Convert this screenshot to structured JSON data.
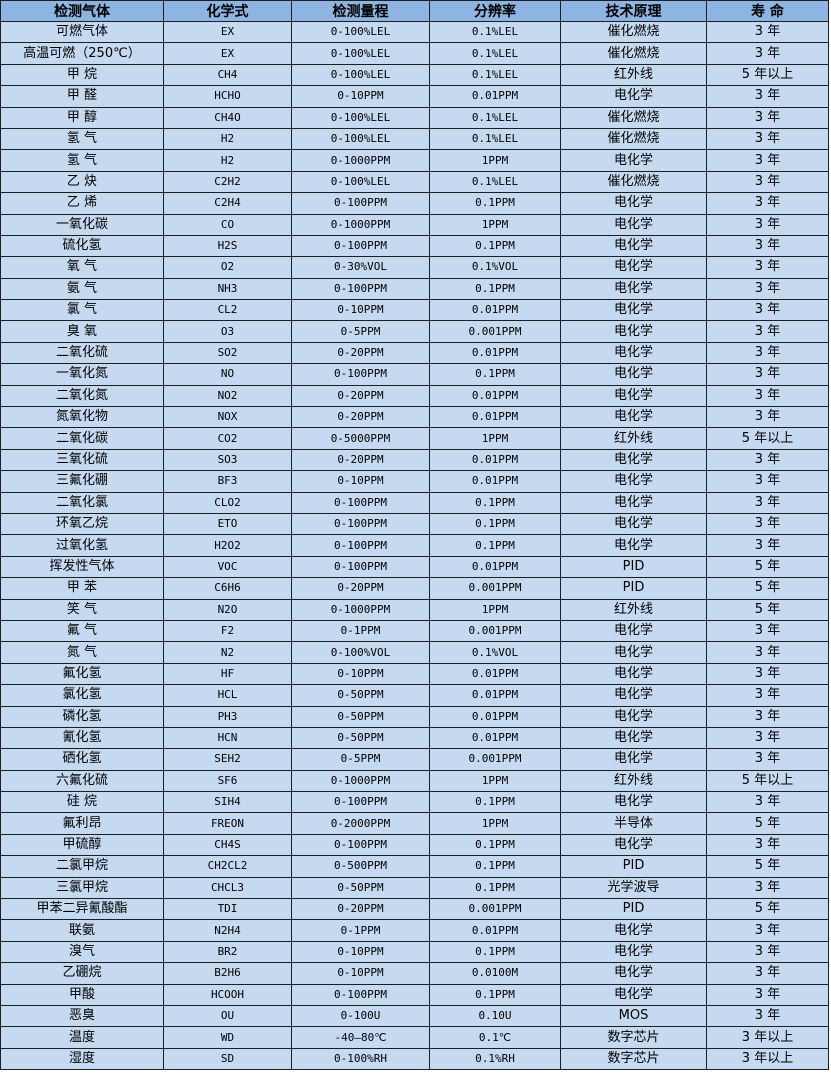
{
  "table": {
    "headers": [
      "检测气体",
      "化学式",
      "检测量程",
      "分辨率",
      "技术原理",
      "寿 命"
    ],
    "rows": [
      [
        "可燃气体",
        "EX",
        "0-100%LEL",
        "0.1%LEL",
        "催化燃烧",
        "3 年"
      ],
      [
        "高温可燃（250℃）",
        "EX",
        "0-100%LEL",
        "0.1%LEL",
        "催化燃烧",
        "3 年"
      ],
      [
        "甲 烷",
        "CH4",
        "0-100%LEL",
        "0.1%LEL",
        "红外线",
        "5 年以上"
      ],
      [
        "甲 醛",
        "HCHO",
        "0-10PPM",
        "0.01PPM",
        "电化学",
        "3 年"
      ],
      [
        "甲 醇",
        "CH4O",
        "0-100%LEL",
        "0.1%LEL",
        "催化燃烧",
        "3 年"
      ],
      [
        "氢 气",
        "H2",
        "0-100%LEL",
        "0.1%LEL",
        "催化燃烧",
        "3 年"
      ],
      [
        "氢 气",
        "H2",
        "0-1000PPM",
        "1PPM",
        "电化学",
        "3 年"
      ],
      [
        "乙 炔",
        "C2H2",
        "0-100%LEL",
        "0.1%LEL",
        "催化燃烧",
        "3 年"
      ],
      [
        "乙 烯",
        "C2H4",
        "0-100PPM",
        "0.1PPM",
        "电化学",
        "3 年"
      ],
      [
        "一氧化碳",
        "CO",
        "0-1000PPM",
        "1PPM",
        "电化学",
        "3 年"
      ],
      [
        "硫化氢",
        "H2S",
        "0-100PPM",
        "0.1PPM",
        "电化学",
        "3 年"
      ],
      [
        "氧 气",
        "O2",
        "0-30%VOL",
        "0.1%VOL",
        "电化学",
        "3 年"
      ],
      [
        "氨 气",
        "NH3",
        "0-100PPM",
        "0.1PPM",
        "电化学",
        "3 年"
      ],
      [
        "氯 气",
        "CL2",
        "0-10PPM",
        "0.01PPM",
        "电化学",
        "3 年"
      ],
      [
        "臭 氧",
        "O3",
        "0-5PPM",
        "0.001PPM",
        "电化学",
        "3 年"
      ],
      [
        "二氧化硫",
        "SO2",
        "0-20PPM",
        "0.01PPM",
        "电化学",
        "3 年"
      ],
      [
        "一氧化氮",
        "NO",
        "0-100PPM",
        "0.1PPM",
        "电化学",
        "3 年"
      ],
      [
        "二氧化氮",
        "NO2",
        "0-20PPM",
        "0.01PPM",
        "电化学",
        "3 年"
      ],
      [
        "氮氧化物",
        "NOX",
        "0-20PPM",
        "0.01PPM",
        "电化学",
        "3 年"
      ],
      [
        "二氧化碳",
        "CO2",
        "0-5000PPM",
        "1PPM",
        "红外线",
        "5 年以上"
      ],
      [
        "三氧化硫",
        "SO3",
        "0-20PPM",
        "0.01PPM",
        "电化学",
        "3 年"
      ],
      [
        "三氟化硼",
        "BF3",
        "0-10PPM",
        "0.01PPM",
        "电化学",
        "3 年"
      ],
      [
        "二氧化氯",
        "CLO2",
        "0-100PPM",
        "0.1PPM",
        "电化学",
        "3 年"
      ],
      [
        "环氧乙烷",
        "ETO",
        "0-100PPM",
        "0.1PPM",
        "电化学",
        "3 年"
      ],
      [
        "过氧化氢",
        "H2O2",
        "0-100PPM",
        "0.1PPM",
        "电化学",
        "3 年"
      ],
      [
        "挥发性气体",
        "VOC",
        "0-100PPM",
        "0.01PPM",
        "PID",
        "5 年"
      ],
      [
        "甲 苯",
        "C6H6",
        "0-20PPM",
        "0.001PPM",
        "PID",
        "5 年"
      ],
      [
        "笑 气",
        "N2O",
        "0-1000PPM",
        "1PPM",
        "红外线",
        "5 年"
      ],
      [
        "氟 气",
        "F2",
        "0-1PPM",
        "0.001PPM",
        "电化学",
        "3 年"
      ],
      [
        "氮 气",
        "N2",
        "0-100%VOL",
        "0.1%VOL",
        "电化学",
        "3 年"
      ],
      [
        "氟化氢",
        "HF",
        "0-10PPM",
        "0.01PPM",
        "电化学",
        "3 年"
      ],
      [
        "氯化氢",
        "HCL",
        "0-50PPM",
        "0.01PPM",
        "电化学",
        "3 年"
      ],
      [
        "磷化氢",
        "PH3",
        "0-50PPM",
        "0.01PPM",
        "电化学",
        "3 年"
      ],
      [
        "氰化氢",
        "HCN",
        "0-50PPM",
        "0.01PPM",
        "电化学",
        "3 年"
      ],
      [
        "硒化氢",
        "SEH2",
        "0-5PPM",
        "0.001PPM",
        "电化学",
        "3 年"
      ],
      [
        "六氟化硫",
        "SF6",
        "0-1000PPM",
        "1PPM",
        "红外线",
        "5 年以上"
      ],
      [
        "硅 烷",
        "SIH4",
        "0-100PPM",
        "0.1PPM",
        "电化学",
        "3 年"
      ],
      [
        "氟利昂",
        "FREON",
        "0-2000PPM",
        "1PPM",
        "半导体",
        "5 年"
      ],
      [
        "甲硫醇",
        "CH4S",
        "0-100PPM",
        "0.1PPM",
        "电化学",
        "3 年"
      ],
      [
        "二氯甲烷",
        "CH2CL2",
        "0-500PPM",
        "0.1PPM",
        "PID",
        "5 年"
      ],
      [
        "三氯甲烷",
        "CHCL3",
        "0-50PPM",
        "0.1PPM",
        "光学波导",
        "3 年"
      ],
      [
        "甲苯二异氰酸酯",
        "TDI",
        "0-20PPM",
        "0.001PPM",
        "PID",
        "5 年"
      ],
      [
        "联氨",
        "N2H4",
        "0-1PPM",
        "0.01PPM",
        "电化学",
        "3 年"
      ],
      [
        "溴气",
        "BR2",
        "0-10PPM",
        "0.1PPM",
        "电化学",
        "3 年"
      ],
      [
        "乙硼烷",
        "B2H6",
        "0-10PPM",
        "0.0100M",
        "电化学",
        "3 年"
      ],
      [
        "甲酸",
        "HCOOH",
        "0-100PPM",
        "0.1PPM",
        "电化学",
        "3 年"
      ],
      [
        "恶臭",
        "OU",
        "0-100U",
        "0.10U",
        "MOS",
        "3 年"
      ],
      [
        "温度",
        "WD",
        "-40—80℃",
        "0.1℃",
        "数字芯片",
        "3 年以上"
      ],
      [
        "湿度",
        "SD",
        "0-100%RH",
        "0.1%RH",
        "数字芯片",
        "3 年以上"
      ]
    ]
  },
  "colors": {
    "header_bg": "#8db4e2",
    "row_bg": "#c5d9f1",
    "border": "#1f1f1f"
  }
}
